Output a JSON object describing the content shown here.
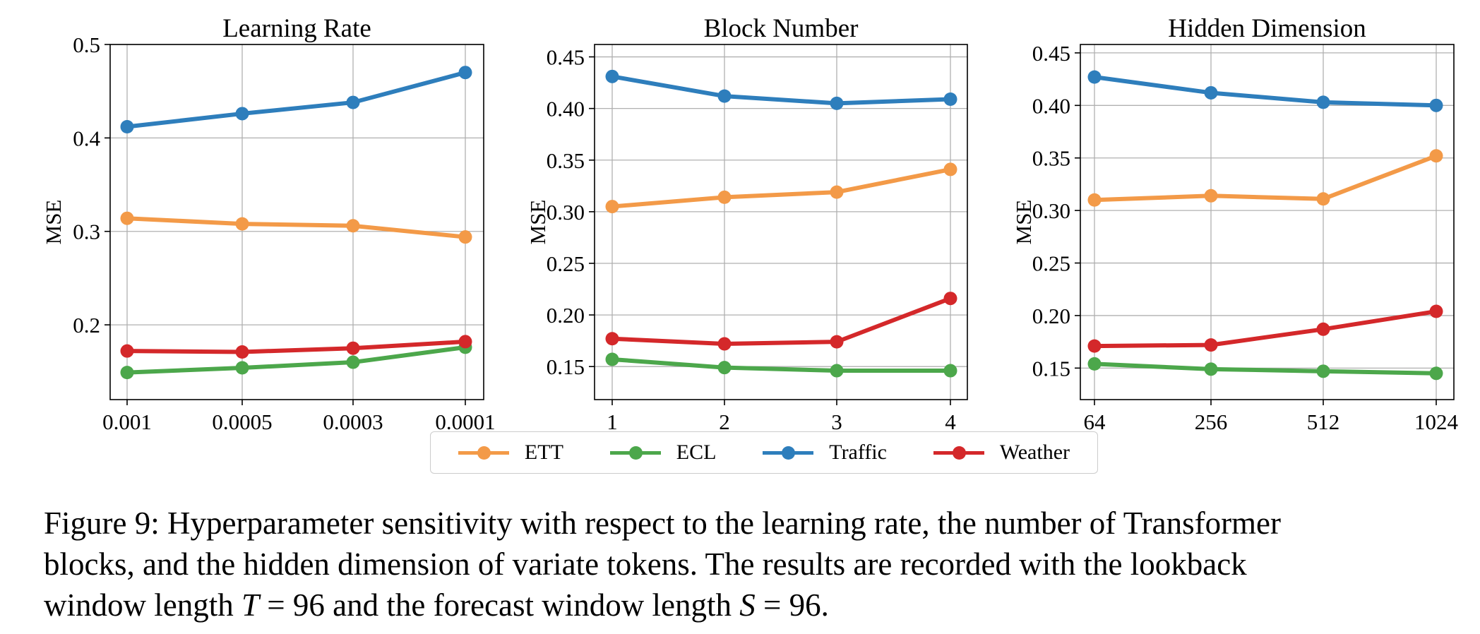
{
  "colors": {
    "ETT": "#f39a48",
    "ECL": "#4ca74b",
    "Traffic": "#2e7ebc",
    "Weather": "#d4282a",
    "grid": "#b0b0b0"
  },
  "legend": {
    "items": [
      {
        "name": "ETT",
        "color": "#f39a48"
      },
      {
        "name": "ECL",
        "color": "#4ca74b"
      },
      {
        "name": "Traffic",
        "color": "#2e7ebc"
      },
      {
        "name": "Weather",
        "color": "#d4282a"
      }
    ]
  },
  "chart_data": [
    {
      "type": "line",
      "title": "Learning Rate",
      "xlabel": "",
      "ylabel": "MSE",
      "categories": [
        "0.001",
        "0.0005",
        "0.0003",
        "0.0001"
      ],
      "ylim": [
        0.12,
        0.5
      ],
      "yticks": [
        0.2,
        0.3,
        0.4,
        0.5
      ],
      "ytick_labels": [
        "0.2",
        "0.3",
        "0.4",
        "0.5"
      ],
      "grid": true,
      "series": [
        {
          "name": "ETT",
          "values": [
            0.314,
            0.308,
            0.306,
            0.294
          ]
        },
        {
          "name": "ECL",
          "values": [
            0.149,
            0.154,
            0.16,
            0.176
          ]
        },
        {
          "name": "Traffic",
          "values": [
            0.412,
            0.426,
            0.438,
            0.47
          ]
        },
        {
          "name": "Weather",
          "values": [
            0.172,
            0.171,
            0.175,
            0.182
          ]
        }
      ]
    },
    {
      "type": "line",
      "title": "Block Number",
      "xlabel": "",
      "ylabel": "MSE",
      "categories": [
        "1",
        "2",
        "3",
        "4"
      ],
      "ylim": [
        0.118,
        0.462
      ],
      "yticks": [
        0.15,
        0.2,
        0.25,
        0.3,
        0.35,
        0.4,
        0.45
      ],
      "ytick_labels": [
        "0.15",
        "0.20",
        "0.25",
        "0.30",
        "0.35",
        "0.40",
        "0.45"
      ],
      "grid": true,
      "series": [
        {
          "name": "ETT",
          "values": [
            0.305,
            0.314,
            0.319,
            0.341
          ]
        },
        {
          "name": "ECL",
          "values": [
            0.157,
            0.149,
            0.146,
            0.146
          ]
        },
        {
          "name": "Traffic",
          "values": [
            0.431,
            0.412,
            0.405,
            0.409
          ]
        },
        {
          "name": "Weather",
          "values": [
            0.177,
            0.172,
            0.174,
            0.216
          ]
        }
      ]
    },
    {
      "type": "line",
      "title": "Hidden Dimension",
      "xlabel": "",
      "ylabel": "MSE",
      "categories": [
        "64",
        "256",
        "512",
        "1024"
      ],
      "ylim": [
        0.12,
        0.458
      ],
      "yticks": [
        0.15,
        0.2,
        0.25,
        0.3,
        0.35,
        0.4,
        0.45
      ],
      "ytick_labels": [
        "0.15",
        "0.20",
        "0.25",
        "0.30",
        "0.35",
        "0.40",
        "0.45"
      ],
      "grid": true,
      "series": [
        {
          "name": "ETT",
          "values": [
            0.31,
            0.314,
            0.311,
            0.352
          ]
        },
        {
          "name": "ECL",
          "values": [
            0.154,
            0.149,
            0.147,
            0.145
          ]
        },
        {
          "name": "Traffic",
          "values": [
            0.427,
            0.412,
            0.403,
            0.4
          ]
        },
        {
          "name": "Weather",
          "values": [
            0.171,
            0.172,
            0.187,
            0.204
          ]
        }
      ]
    }
  ],
  "caption": {
    "line1": "Figure 9: Hyperparameter sensitivity with respect to the learning rate, the number of Transformer",
    "line2": "blocks, and the hidden dimension of variate tokens. The results are recorded with the lookback",
    "line3_a": "window length ",
    "var_T": "T",
    "eq1": " = 96 and the forecast window length ",
    "var_S": "S",
    "eq2": " = 96."
  }
}
